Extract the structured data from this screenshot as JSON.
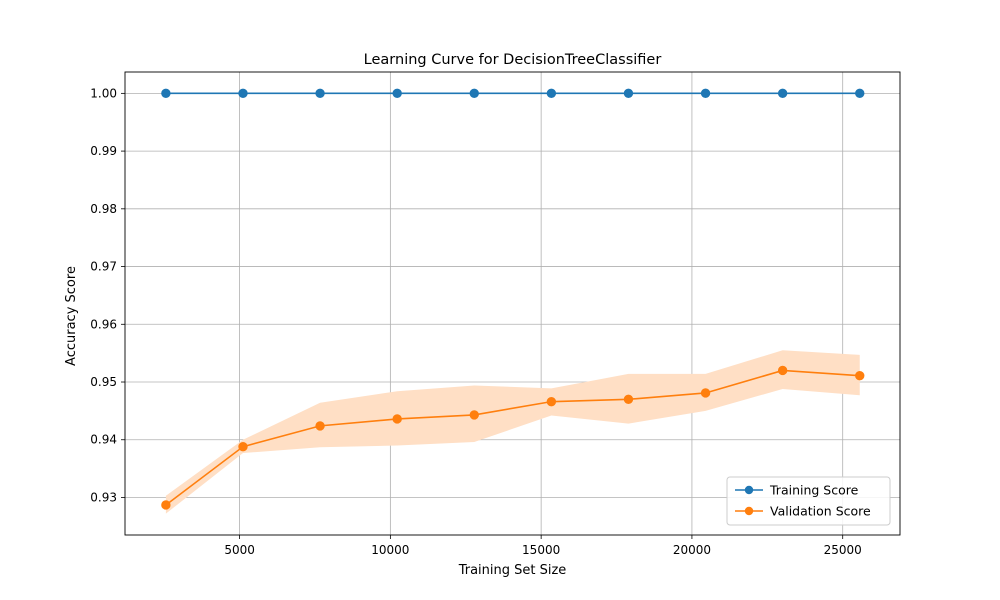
{
  "chart_data": {
    "type": "line",
    "title": "Learning Curve for DecisionTreeClassifier",
    "xlabel": "Training Set Size",
    "ylabel": "Accuracy Score",
    "xlim": [
      1200,
      26900
    ],
    "ylim": [
      0.9235,
      1.0037
    ],
    "x_ticks": [
      5000,
      10000,
      15000,
      20000,
      25000
    ],
    "x_tick_labels": [
      "5000",
      "10000",
      "15000",
      "20000",
      "25000"
    ],
    "y_ticks": [
      0.93,
      0.94,
      0.95,
      0.96,
      0.97,
      0.98,
      0.99,
      1.0
    ],
    "y_tick_labels": [
      "0.93",
      "0.94",
      "0.95",
      "0.96",
      "0.97",
      "0.98",
      "0.99",
      "1.00"
    ],
    "grid": true,
    "legend_position": "bottom-right",
    "x": [
      2556,
      5113,
      7669,
      10226,
      12782,
      15339,
      17895,
      20452,
      23008,
      25565
    ],
    "series": [
      {
        "name": "Training Score",
        "color": "#1f77b4",
        "marker": "circle",
        "values": [
          1.0,
          1.0,
          1.0,
          1.0,
          1.0,
          1.0,
          1.0,
          1.0,
          1.0,
          1.0
        ],
        "band_lower": [
          1.0,
          1.0,
          1.0,
          1.0,
          1.0,
          1.0,
          1.0,
          1.0,
          1.0,
          1.0
        ],
        "band_upper": [
          1.0,
          1.0,
          1.0,
          1.0,
          1.0,
          1.0,
          1.0,
          1.0,
          1.0,
          1.0
        ]
      },
      {
        "name": "Validation Score",
        "color": "#ff7f0e",
        "band_color": "#ffdfc5",
        "marker": "circle",
        "values": [
          0.9287,
          0.9388,
          0.9424,
          0.9436,
          0.9443,
          0.9466,
          0.947,
          0.9481,
          0.952,
          0.9511
        ],
        "band_lower": [
          0.9272,
          0.9377,
          0.9387,
          0.939,
          0.9396,
          0.9442,
          0.9428,
          0.945,
          0.9488,
          0.9477
        ],
        "band_upper": [
          0.9303,
          0.94,
          0.9464,
          0.9484,
          0.9494,
          0.9489,
          0.9514,
          0.9514,
          0.9555,
          0.9547
        ]
      }
    ]
  }
}
